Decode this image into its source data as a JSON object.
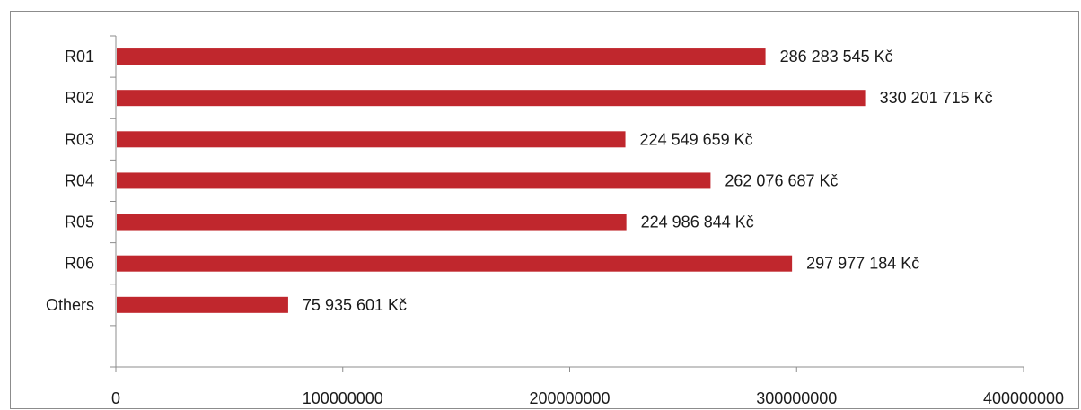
{
  "chart_data": {
    "type": "bar",
    "orientation": "horizontal",
    "categories": [
      "R01",
      "R02",
      "R03",
      "R04",
      "R05",
      "R06",
      "Others"
    ],
    "values": [
      286283545,
      330201715,
      224549659,
      262076687,
      224986844,
      297977184,
      75935601
    ],
    "data_labels": [
      "286 283 545 Kč",
      "330 201 715 Kč",
      "224 549 659 Kč",
      "262 076 687 Kč",
      "224 986 844 Kč",
      "297 977 184 Kč",
      "75 935 601 Kč"
    ],
    "x_ticks": [
      "0",
      "100000000",
      "200000000",
      "300000000",
      "400000000"
    ],
    "xlim": [
      0,
      400000000
    ],
    "bar_color": "#c0272d",
    "axis_color": "#8c8c8c",
    "grid": false,
    "legend": false
  }
}
